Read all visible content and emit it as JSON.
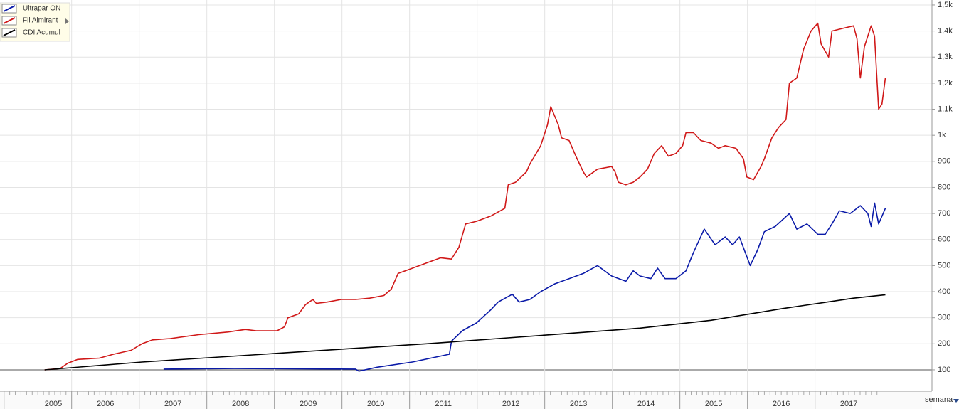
{
  "chart_data": {
    "type": "line",
    "xlim": [
      2004.94,
      2018.73
    ],
    "xticks": [
      2005,
      2006,
      2007,
      2008,
      2009,
      2010,
      2011,
      2012,
      2013,
      2014,
      2015,
      2016,
      2017
    ],
    "ylim": [
      18,
      1519
    ],
    "yticks": [
      100,
      200,
      300,
      400,
      500,
      600,
      700,
      800,
      900,
      {
        "value": 1000,
        "label": "1k"
      },
      {
        "value": 1100,
        "label": "1,1k"
      },
      {
        "value": 1200,
        "label": "1,2k"
      },
      {
        "value": 1300,
        "label": "1,3k"
      },
      {
        "value": 1400,
        "label": "1,4k"
      },
      {
        "value": 1500,
        "label": "1,5k"
      }
    ],
    "reference_line": 100,
    "grid": true,
    "legend": "top-left",
    "period_selector": "semana",
    "series": [
      {
        "name": "Ultrapar ON",
        "color": "#0a1aa8",
        "x": [
          2007.36,
          2008.41,
          2010.2,
          2010.25,
          2010.52,
          2011.04,
          2011.59,
          2011.62,
          2011.78,
          2011.99,
          2012.2,
          2012.31,
          2012.52,
          2012.62,
          2012.78,
          2012.94,
          2013.15,
          2013.36,
          2013.57,
          2013.78,
          2013.99,
          2014.2,
          2014.31,
          2014.41,
          2014.57,
          2014.67,
          2014.78,
          2014.94,
          2015.09,
          2015.2,
          2015.36,
          2015.52,
          2015.67,
          2015.78,
          2015.88,
          2016.04,
          2016.15,
          2016.25,
          2016.41,
          2016.62,
          2016.73,
          2016.88,
          2017.04,
          2017.15,
          2017.25,
          2017.36,
          2017.52,
          2017.67,
          2017.78,
          2017.83,
          2017.88,
          2017.94,
          2018.04
        ],
        "values": [
          103,
          105,
          103,
          95,
          110,
          130,
          160,
          210,
          250,
          280,
          330,
          360,
          390,
          360,
          370,
          400,
          430,
          450,
          470,
          500,
          460,
          440,
          480,
          460,
          450,
          490,
          450,
          450,
          480,
          550,
          640,
          580,
          610,
          580,
          610,
          500,
          560,
          630,
          650,
          700,
          640,
          660,
          620,
          620,
          660,
          710,
          700,
          730,
          700,
          650,
          740,
          660,
          720
        ]
      },
      {
        "name": "Fil Almirant",
        "color": "#d01818",
        "x": [
          2005.6,
          2005.83,
          2005.94,
          2006.09,
          2006.41,
          2006.62,
          2006.88,
          2007.04,
          2007.2,
          2007.46,
          2007.88,
          2008.31,
          2008.57,
          2008.73,
          2009.04,
          2009.15,
          2009.2,
          2009.36,
          2009.46,
          2009.57,
          2009.62,
          2009.78,
          2009.99,
          2010.2,
          2010.41,
          2010.62,
          2010.73,
          2010.83,
          2010.99,
          2011.25,
          2011.46,
          2011.62,
          2011.73,
          2011.83,
          2011.99,
          2012.2,
          2012.41,
          2012.46,
          2012.57,
          2012.73,
          2012.78,
          2012.94,
          2013.04,
          2013.09,
          2013.2,
          2013.25,
          2013.36,
          2013.46,
          2013.57,
          2013.62,
          2013.78,
          2013.99,
          2014.04,
          2014.09,
          2014.2,
          2014.31,
          2014.41,
          2014.52,
          2014.62,
          2014.73,
          2014.83,
          2014.94,
          2015.04,
          2015.09,
          2015.2,
          2015.31,
          2015.46,
          2015.57,
          2015.67,
          2015.83,
          2015.94,
          2015.99,
          2016.09,
          2016.2,
          2016.25,
          2016.36,
          2016.46,
          2016.57,
          2016.62,
          2016.73,
          2016.83,
          2016.94,
          2017.04,
          2017.09,
          2017.2,
          2017.25,
          2017.41,
          2017.57,
          2017.62,
          2017.67,
          2017.73,
          2017.83,
          2017.88,
          2017.94,
          2017.99,
          2018.04
        ],
        "values": [
          100,
          105,
          125,
          140,
          145,
          160,
          175,
          200,
          215,
          220,
          235,
          245,
          255,
          250,
          250,
          265,
          300,
          315,
          350,
          370,
          355,
          360,
          370,
          370,
          375,
          385,
          410,
          470,
          485,
          510,
          530,
          525,
          570,
          660,
          670,
          690,
          720,
          810,
          820,
          860,
          890,
          960,
          1040,
          1110,
          1040,
          990,
          980,
          920,
          860,
          840,
          870,
          880,
          860,
          820,
          810,
          820,
          840,
          870,
          930,
          960,
          920,
          930,
          960,
          1010,
          1010,
          980,
          970,
          950,
          960,
          950,
          910,
          840,
          830,
          880,
          910,
          990,
          1030,
          1060,
          1200,
          1220,
          1330,
          1400,
          1430,
          1350,
          1300,
          1400,
          1410,
          1420,
          1370,
          1220,
          1340,
          1420,
          1380,
          1100,
          1120,
          1220
        ]
      },
      {
        "name": "CDI Acumul",
        "color": "#000000",
        "x": [
          2005.6,
          2007.04,
          2009.15,
          2011.25,
          2012.31,
          2013.36,
          2014.41,
          2015.46,
          2016.52,
          2017.57,
          2018.04
        ],
        "values": [
          100,
          130,
          165,
          200,
          220,
          240,
          260,
          290,
          335,
          375,
          388
        ]
      }
    ]
  }
}
